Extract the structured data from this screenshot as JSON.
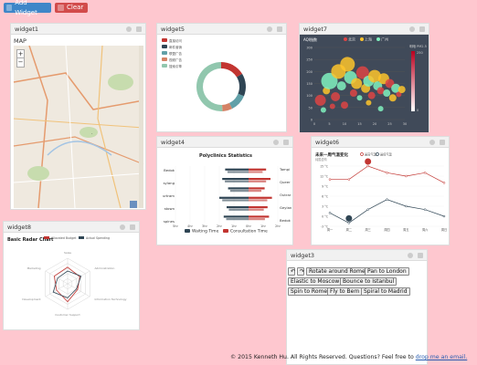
{
  "toolbar": {
    "add_label": "Add Widget",
    "clear_label": "Clear"
  },
  "widgets": {
    "w1": {
      "title": "widget1",
      "map_label": "MAP",
      "zoom_in": "+",
      "zoom_out": "−"
    },
    "w5": {
      "title": "widget5"
    },
    "w7": {
      "title": "widget7"
    },
    "w4": {
      "title": "widget4"
    },
    "w6": {
      "title": "widget6"
    },
    "w8": {
      "title": "widget8"
    },
    "w3": {
      "title": "widget3"
    }
  },
  "chart_data": [
    {
      "type": "pie",
      "widget": "widget5",
      "donut": true,
      "slices": [
        {
          "label": "直接访问",
          "value": 335,
          "color": "#c23531"
        },
        {
          "label": "邮件营销",
          "value": 310,
          "color": "#2f4554"
        },
        {
          "label": "联盟广告",
          "value": 234,
          "color": "#61a0a8"
        },
        {
          "label": "视频广告",
          "value": 135,
          "color": "#d48265"
        },
        {
          "label": "搜索引擎",
          "value": 1048,
          "color": "#91c7ae"
        }
      ]
    },
    {
      "type": "scatter",
      "widget": "widget7",
      "title": "AQI指数",
      "legend": [
        "北京",
        "上海",
        "广州"
      ],
      "legend_colors": [
        "#dd4444",
        "#fec42c",
        "#80f1be"
      ],
      "yticks": [
        "300",
        "250",
        "200",
        "150",
        "100",
        "50",
        "0"
      ],
      "xticks": [
        "0",
        "5",
        "10",
        "15",
        "20",
        "25",
        "30"
      ],
      "visualmap_title": "明暗 PM2.5",
      "visualmap_top": "250",
      "visualmap_bottom": "0"
    },
    {
      "type": "bar",
      "widget": "widget4",
      "title": "Polyclinics Statistics",
      "categories": [
        "Bedok",
        "Jurong",
        "Geylang",
        "Outram",
        "Queenstown",
        "Tampines"
      ],
      "categories_left": [
        "Bedok",
        "sylang",
        "urtram",
        "stown",
        "spines"
      ],
      "categories_right": [
        "Bedok",
        "Geylan",
        "Outrar",
        "Queer",
        "Tampi"
      ],
      "series": [
        {
          "name": "Waiting Time",
          "color": "#2f4554",
          "values": [
            1.7,
            1.5,
            2.0,
            1.4,
            1.8,
            1.6
          ]
        },
        {
          "name": "Consultation Time",
          "color": "#c23531",
          "values": [
            1.4,
            1.3,
            1.6,
            1.1,
            1.5,
            1.2
          ]
        }
      ],
      "xticks": [
        "5hr",
        "4hr",
        "3hr",
        "2hr",
        "1hr",
        "0hr",
        "1hr",
        "2hr"
      ]
    },
    {
      "type": "line",
      "widget": "widget6",
      "title": "未来一周气温变化",
      "subtitle": "纯属虚构",
      "legend": [
        "最高气温",
        "最低气温"
      ],
      "categories": [
        "周一",
        "周二",
        "周三",
        "周四",
        "周五",
        "周六",
        "周日"
      ],
      "series": [
        {
          "name": "最高气温",
          "color": "#c23531",
          "values": [
            11,
            11,
            15,
            13,
            12,
            13,
            10
          ]
        },
        {
          "name": "最低气温",
          "color": "#2f4554",
          "values": [
            1,
            -2,
            2,
            5,
            3,
            2,
            0
          ]
        }
      ],
      "yticks": [
        "15 °C",
        "12 °C",
        "9 °C",
        "6 °C",
        "3 °C",
        "0 °C",
        "-3 °C"
      ]
    },
    {
      "type": "radar",
      "widget": "widget8",
      "title": "Basic Radar Chart",
      "legend": [
        "Allocated Budget",
        "Actual Spending"
      ],
      "indicators": [
        "Sales",
        "Administration",
        "Information Technology",
        "Customer Support",
        "Development",
        "Marketing"
      ],
      "series": [
        {
          "name": "Allocated Budget",
          "color": "#c23531",
          "values": [
            0.65,
            0.55,
            0.45,
            0.7,
            0.5,
            0.6
          ]
        },
        {
          "name": "Actual Spending",
          "color": "#2f4554",
          "values": [
            0.5,
            0.6,
            0.4,
            0.55,
            0.65,
            0.45
          ]
        }
      ]
    }
  ],
  "globe_controls": {
    "undo": "↶",
    "redo": "↷",
    "buttons": [
      "Rotate around Rome",
      "Pan to London",
      "Elastic to Moscow",
      "Bounce to Istanbul",
      "Spin to Rome",
      "Fly to Bern",
      "Spiral to Madrid"
    ]
  },
  "footer": {
    "text": "© 2015 Kenneth Hu. All Rights Reserved. Questions? Feel free to ",
    "link": "drop me an email."
  }
}
